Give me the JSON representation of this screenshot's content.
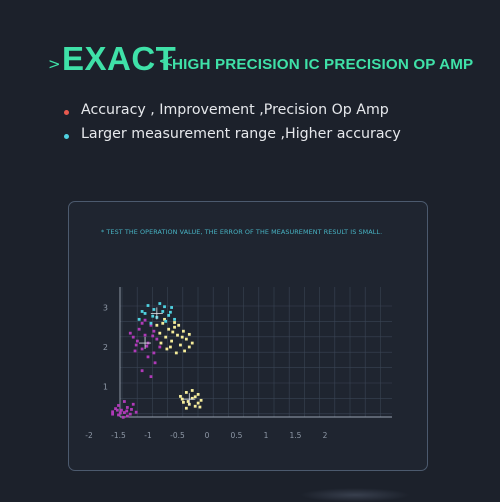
{
  "header": {
    "chevron_left": ">",
    "title_big": "EXACT",
    "chevron_right": "<",
    "title_small": "HIGH PRECISION IC PRECISION OP AMP",
    "accent_color": "#3fe1a8"
  },
  "bullets": [
    {
      "text": "Accuracy , Improvement ,Precision Op Amp",
      "dot_color": "#e85a4f"
    },
    {
      "text": "Larger measurement range ,Higher accuracy",
      "dot_color": "#4fd1e0"
    }
  ],
  "panel": {
    "note": "* TEST THE OPERATION VALUE, THE ERROR OF THE MEASUREMENT RESULT IS SMALL."
  },
  "chart_data": {
    "type": "scatter",
    "title": "",
    "xlabel": "",
    "ylabel": "",
    "xlim": [
      -2.4,
      2.4
    ],
    "ylim": [
      -0.5,
      3.3
    ],
    "x_ticks": [
      -2,
      -1.5,
      -1,
      -0.5,
      0,
      0.5,
      1,
      1.5,
      2
    ],
    "x_tick_labels": [
      "-2",
      "-1.5",
      "-1",
      "-0.5",
      "0",
      "0.5",
      "1",
      "1.5",
      "2"
    ],
    "y_ticks": [
      1,
      2,
      3
    ],
    "y_tick_labels": [
      "1",
      "2",
      "3"
    ],
    "grid": true,
    "series": [
      {
        "color": "#b03ab8",
        "points": [
          [
            -1.6,
            0.36
          ],
          [
            -1.55,
            0.44
          ],
          [
            -1.5,
            0.28
          ],
          [
            -1.45,
            0.4
          ],
          [
            -1.4,
            0.34
          ],
          [
            -1.35,
            0.47
          ],
          [
            -1.3,
            0.3
          ],
          [
            -1.5,
            0.52
          ],
          [
            -1.42,
            0.22
          ],
          [
            -1.36,
            0.38
          ],
          [
            -1.28,
            0.42
          ],
          [
            -1.47,
            0.33
          ],
          [
            -1.6,
            0.3
          ],
          [
            -1.25,
            0.55
          ],
          [
            -1.35,
            0.25
          ],
          [
            -1.4,
            0.62
          ],
          [
            -1.2,
            0.35
          ],
          [
            -1.52,
            0.4
          ],
          [
            -1.25,
            2.25
          ],
          [
            -1.2,
            2.05
          ],
          [
            -1.15,
            2.45
          ],
          [
            -1.1,
            1.95
          ],
          [
            -1.05,
            2.3
          ],
          [
            -1.0,
            2.1
          ],
          [
            -0.95,
            2.55
          ],
          [
            -0.9,
            1.85
          ],
          [
            -0.85,
            2.2
          ],
          [
            -1.1,
            2.6
          ],
          [
            -1.0,
            1.75
          ],
          [
            -0.9,
            2.4
          ],
          [
            -1.18,
            2.15
          ],
          [
            -1.02,
            2.02
          ],
          [
            -0.92,
            2.28
          ],
          [
            -1.22,
            1.9
          ],
          [
            -0.88,
            1.6
          ],
          [
            -0.95,
            1.25
          ],
          [
            -1.1,
            1.4
          ],
          [
            -0.8,
            2.0
          ],
          [
            -1.3,
            2.35
          ],
          [
            -1.05,
            2.68
          ]
        ]
      },
      {
        "color": "#f5ec9a",
        "points": [
          [
            -0.85,
            2.55
          ],
          [
            -0.8,
            2.35
          ],
          [
            -0.75,
            2.6
          ],
          [
            -0.7,
            2.25
          ],
          [
            -0.65,
            2.45
          ],
          [
            -0.6,
            2.15
          ],
          [
            -0.55,
            2.5
          ],
          [
            -0.5,
            2.3
          ],
          [
            -0.45,
            2.05
          ],
          [
            -0.4,
            2.4
          ],
          [
            -0.35,
            2.2
          ],
          [
            -0.3,
            2.0
          ],
          [
            -0.25,
            2.1
          ],
          [
            -0.78,
            2.1
          ],
          [
            -0.68,
            1.95
          ],
          [
            -0.58,
            2.38
          ],
          [
            -0.48,
            2.55
          ],
          [
            -0.38,
            1.9
          ],
          [
            -0.72,
            2.7
          ],
          [
            -0.62,
            2.0
          ],
          [
            -0.52,
            1.85
          ],
          [
            -0.42,
            2.25
          ],
          [
            -0.3,
            2.32
          ],
          [
            -0.55,
            2.62
          ],
          [
            -0.45,
            0.75
          ],
          [
            -0.4,
            0.6
          ],
          [
            -0.35,
            0.85
          ],
          [
            -0.3,
            0.55
          ],
          [
            -0.25,
            0.7
          ],
          [
            -0.2,
            0.5
          ],
          [
            -0.15,
            0.8
          ],
          [
            -0.1,
            0.65
          ],
          [
            -0.35,
            0.45
          ],
          [
            -0.25,
            0.9
          ],
          [
            -0.15,
            0.58
          ],
          [
            -0.42,
            0.68
          ],
          [
            -0.2,
            0.74
          ],
          [
            -0.32,
            0.62
          ],
          [
            -0.12,
            0.48
          ]
        ]
      },
      {
        "color": "#4fd1e0",
        "points": [
          [
            -1.15,
            2.7
          ],
          [
            -1.05,
            2.85
          ],
          [
            -0.95,
            2.6
          ],
          [
            -0.9,
            2.95
          ],
          [
            -0.85,
            2.75
          ],
          [
            -0.75,
            2.9
          ],
          [
            -0.7,
            2.65
          ],
          [
            -0.65,
            2.8
          ],
          [
            -0.6,
            3.0
          ],
          [
            -1.0,
            3.05
          ],
          [
            -0.8,
            3.1
          ],
          [
            -0.55,
            2.7
          ],
          [
            -1.1,
            2.9
          ],
          [
            -0.92,
            2.78
          ],
          [
            -0.72,
            3.02
          ],
          [
            -0.62,
            2.88
          ]
        ]
      }
    ],
    "markers": [
      {
        "x": -0.85,
        "y": 2.85,
        "color": "#dfe3ea"
      },
      {
        "x": -1.05,
        "y": 2.1,
        "color": "#dfe3ea"
      },
      {
        "x": -0.3,
        "y": 0.68,
        "color": "#dfe3ea"
      }
    ]
  }
}
